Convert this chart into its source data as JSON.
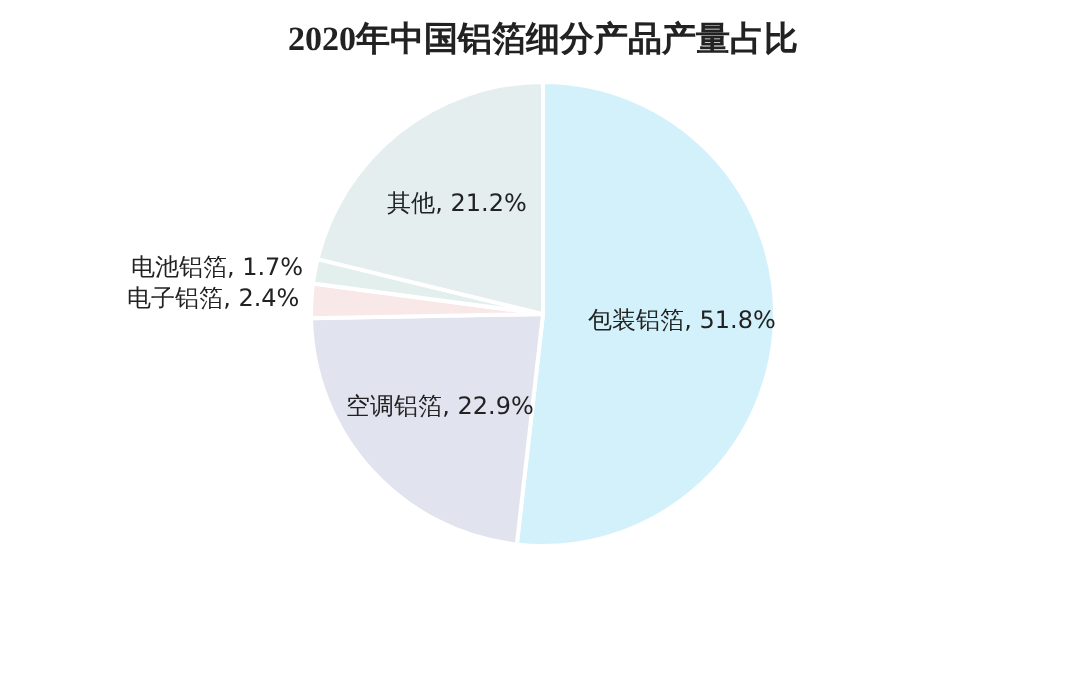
{
  "chart_data": {
    "type": "pie",
    "title": "2020年中国铝箔细分产品产量占比",
    "categories": [
      "包装铝箔",
      "空调铝箔",
      "电子铝箔",
      "电池铝箔",
      "其他"
    ],
    "values": [
      51.8,
      22.9,
      2.4,
      1.7,
      21.2
    ],
    "value_labels": [
      "51.8%",
      "22.9%",
      "2.4%",
      "1.7%",
      "21.2%"
    ],
    "colors": [
      "#d3f1fb",
      "#e1e4ee",
      "#f8e8e8",
      "#e2efed",
      "#e4eeee"
    ],
    "legend": false
  }
}
